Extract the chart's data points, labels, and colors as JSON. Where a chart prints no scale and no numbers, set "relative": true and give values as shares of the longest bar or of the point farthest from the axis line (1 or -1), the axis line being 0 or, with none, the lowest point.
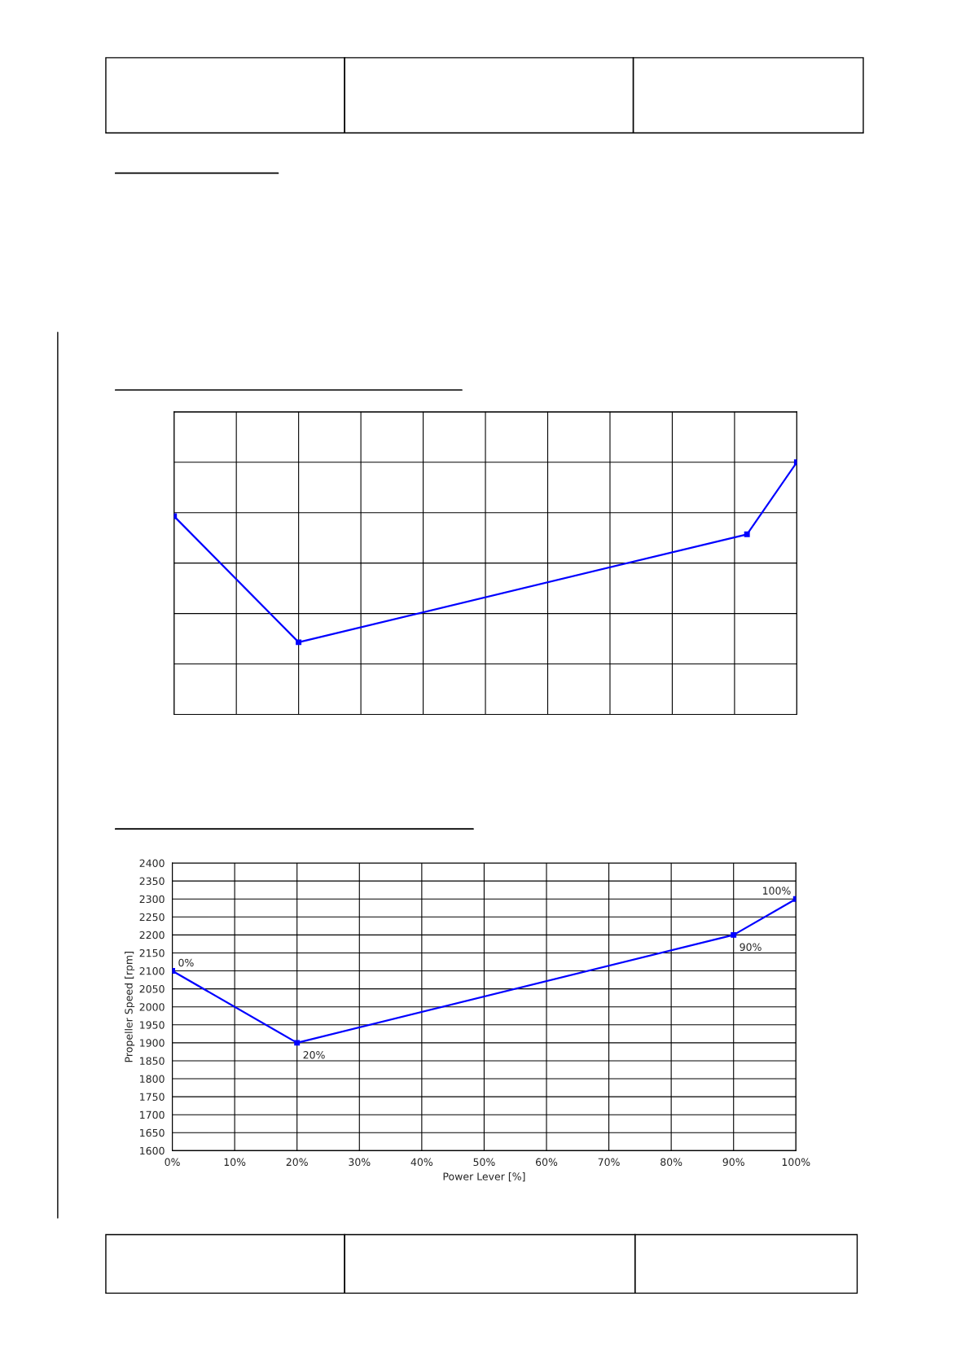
{
  "chart_data": [
    {
      "type": "line",
      "relative": true,
      "x": [
        0,
        20,
        92,
        100
      ],
      "series": [
        {
          "color": "#0000ff",
          "values": [
            0.786,
            0.286,
            0.714,
            1
          ]
        }
      ],
      "xlim": [
        0,
        100
      ],
      "xticks": [
        {
          "value": 0,
          "label": null
        },
        {
          "value": 10,
          "label": null
        },
        {
          "value": 20,
          "label": null
        },
        {
          "value": 30,
          "label": null
        },
        {
          "value": 40,
          "label": null
        },
        {
          "value": 50,
          "label": null
        },
        {
          "value": 60,
          "label": null
        },
        {
          "value": 70,
          "label": null
        },
        {
          "value": 80,
          "label": null
        },
        {
          "value": 90,
          "label": null
        },
        {
          "value": 100,
          "label": null
        }
      ],
      "grid": true,
      "marker": "square",
      "line_style": "solid",
      "tick_labels": false
    },
    {
      "type": "line",
      "x": [
        0,
        20,
        90,
        100
      ],
      "series": [
        {
          "color": "#0000ff",
          "values": [
            2100,
            1900,
            2200,
            2300
          ]
        }
      ],
      "xlim": [
        0,
        100
      ],
      "xticks": [
        {
          "value": 0,
          "label": "0%"
        },
        {
          "value": 10,
          "label": "10%"
        },
        {
          "value": 20,
          "label": "20%"
        },
        {
          "value": 30,
          "label": "30%"
        },
        {
          "value": 40,
          "label": "40%"
        },
        {
          "value": 50,
          "label": "50%"
        },
        {
          "value": 60,
          "label": "60%"
        },
        {
          "value": 70,
          "label": "70%"
        },
        {
          "value": 80,
          "label": "80%"
        },
        {
          "value": 90,
          "label": "90%"
        },
        {
          "value": 100,
          "label": "100%"
        }
      ],
      "ylim": [
        1600,
        2400
      ],
      "yticks": [
        1600,
        1650,
        1700,
        1750,
        1800,
        1850,
        1900,
        1950,
        2000,
        2050,
        2100,
        2150,
        2200,
        2250,
        2300,
        2350,
        2400
      ],
      "xlabel": "Power Lever [%]",
      "ylabel": "Propeller Speed [rpm]",
      "annotations": [
        {
          "text": "0%",
          "x": 0,
          "y": 2100
        },
        {
          "text": "20%",
          "x": 20,
          "y": 1900
        },
        {
          "text": "90%",
          "x": 90,
          "y": 2200
        },
        {
          "text": "100%",
          "x": 100,
          "y": 2300
        }
      ],
      "grid": true,
      "marker": "square",
      "line_style": "solid"
    }
  ]
}
